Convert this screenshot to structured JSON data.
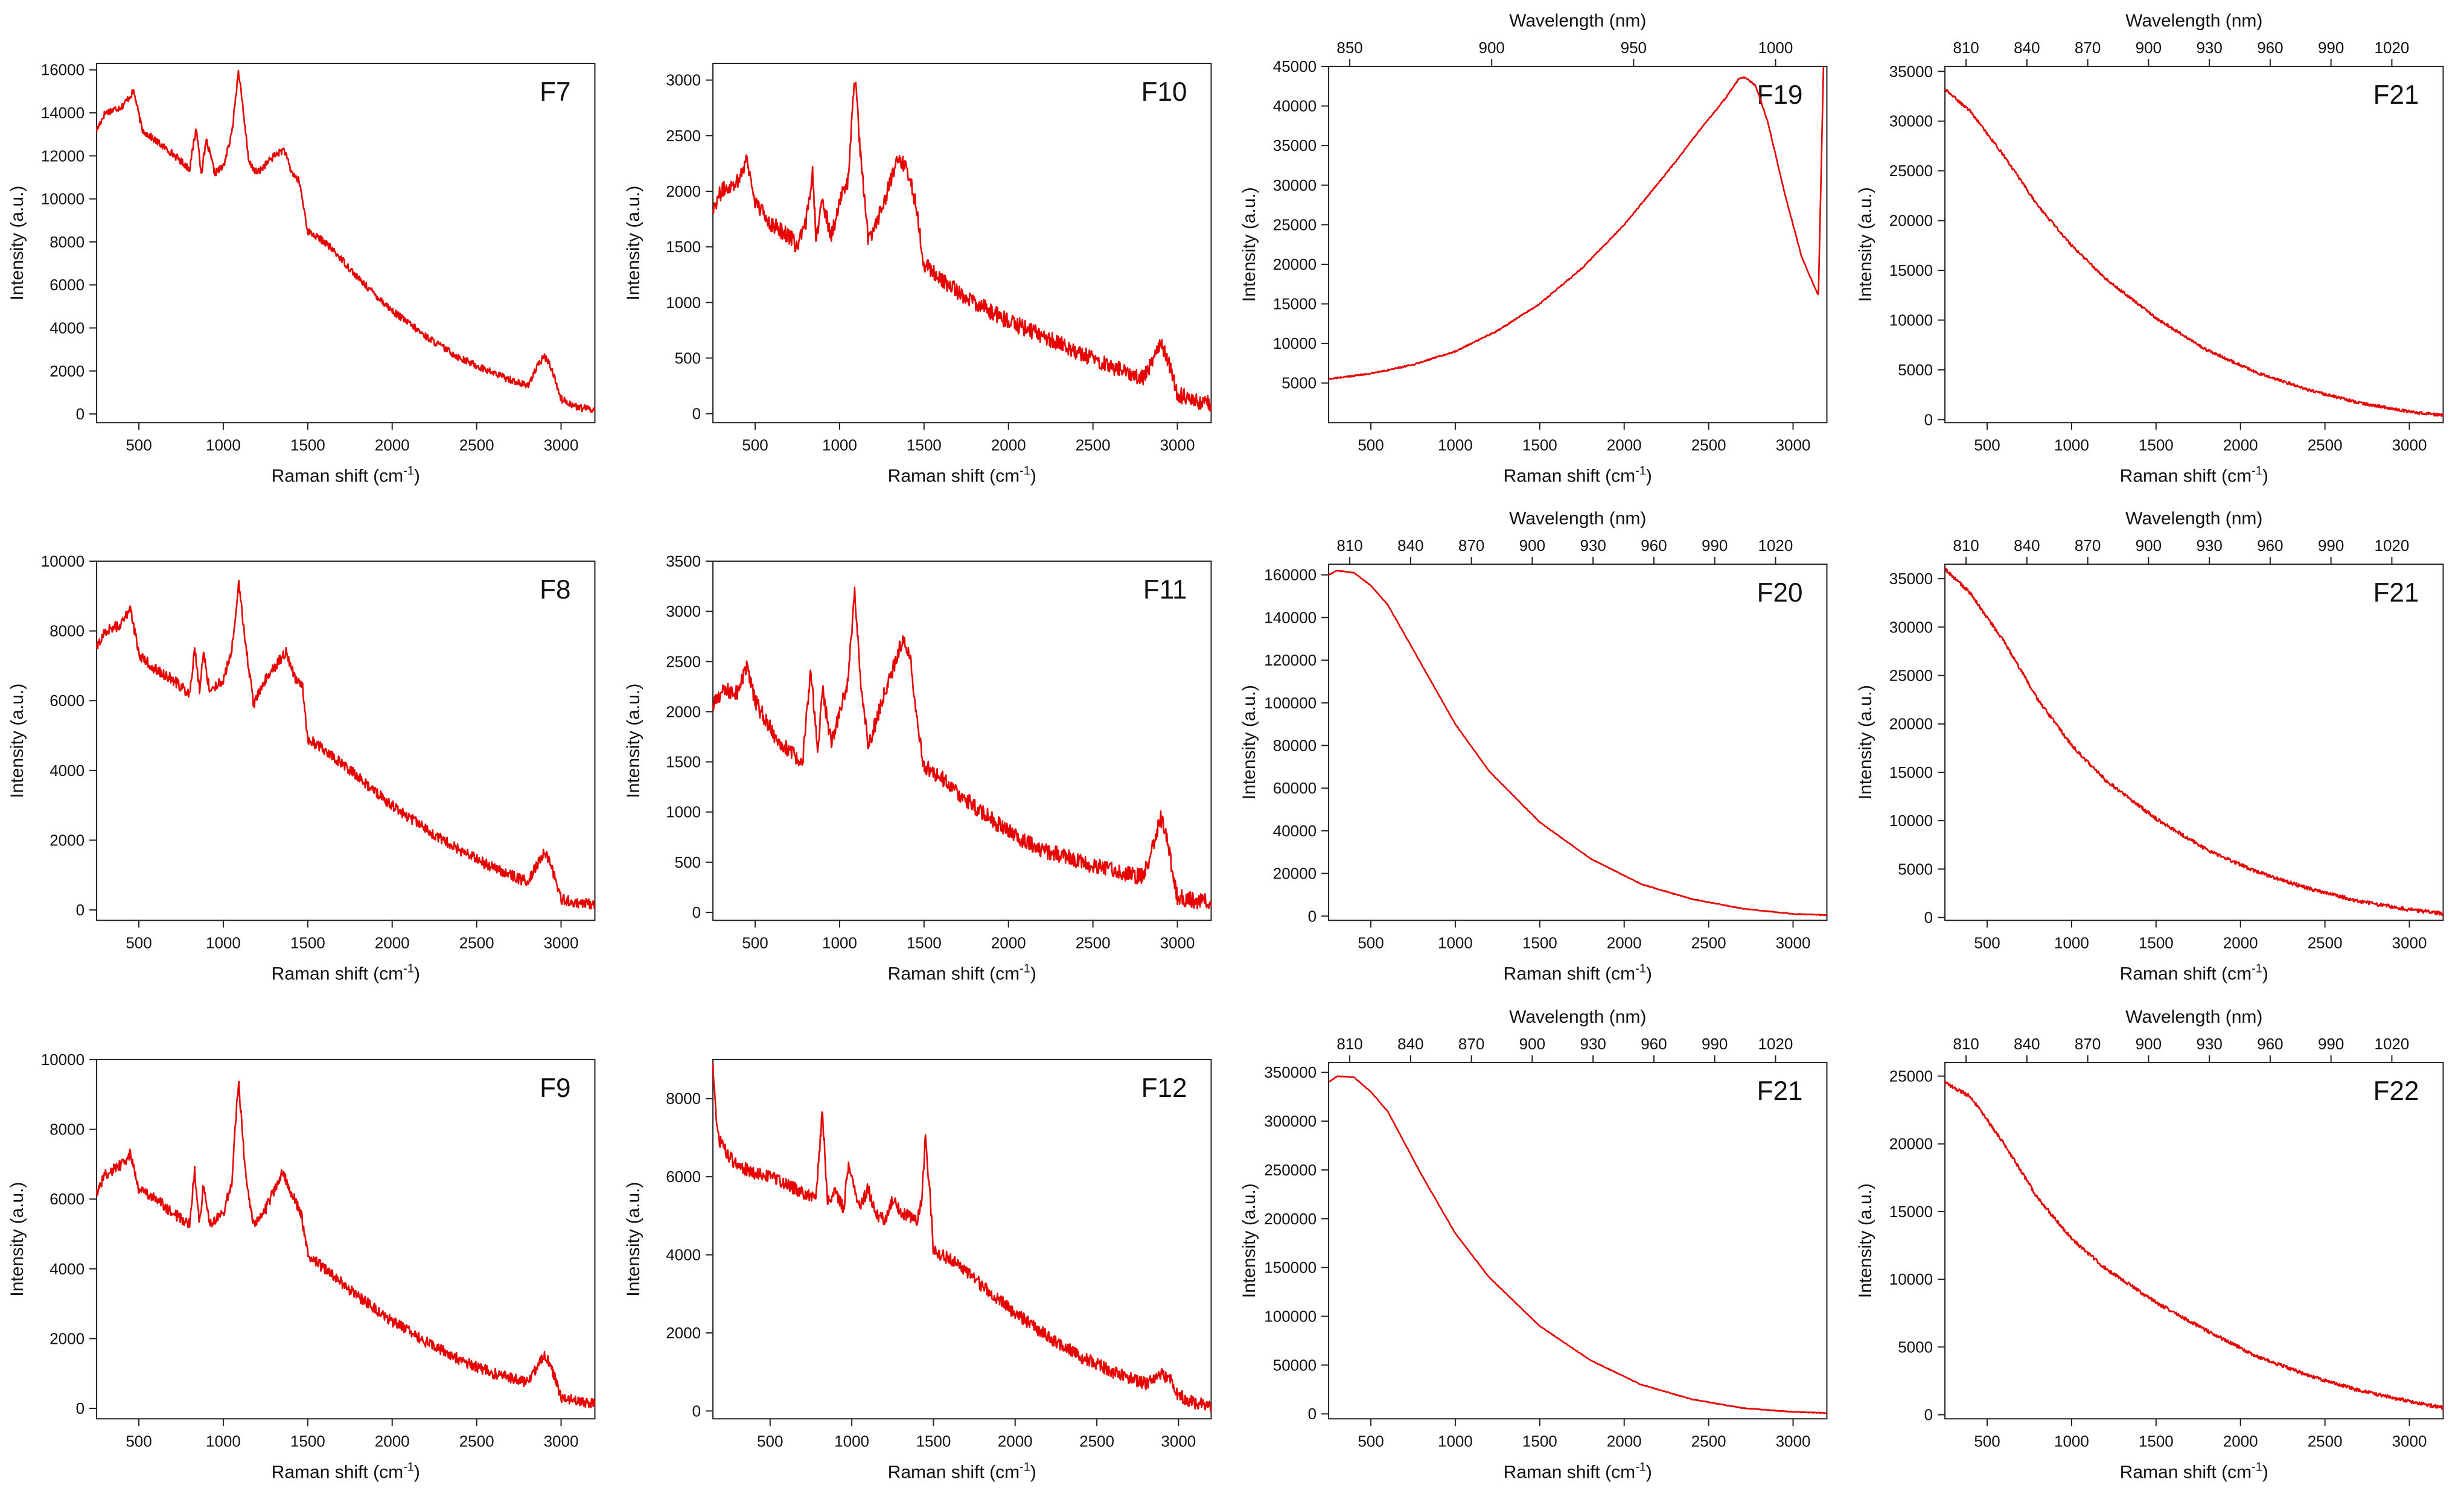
{
  "figure": {
    "accent_color": "#e60000",
    "axis_color": "#222222"
  },
  "chart_data": [
    {
      "id": "F7",
      "type": "line",
      "title": "F7",
      "xlabel": "Raman shift (cm",
      "xlabel_sup": "-1",
      "xlabel_end": ")",
      "ylabel": "Intensity (a.u.)",
      "xlim": [
        250,
        3200
      ],
      "ylim": [
        -400,
        16300
      ],
      "xticks": [
        500,
        1000,
        1500,
        2000,
        2500,
        3000
      ],
      "yticks": [
        0,
        2000,
        4000,
        6000,
        8000,
        10000,
        12000,
        14000,
        16000
      ],
      "top_axis": null,
      "noise": 0.02,
      "x": [
        250,
        300,
        400,
        470,
        520,
        600,
        700,
        800,
        840,
        870,
        900,
        950,
        1000,
        1050,
        1090,
        1120,
        1150,
        1200,
        1300,
        1360,
        1400,
        1450,
        1500,
        1600,
        1700,
        1800,
        2000,
        2200,
        2400,
        2600,
        2800,
        2860,
        2900,
        2940,
        3000,
        3100,
        3200
      ],
      "y": [
        13200,
        14000,
        14300,
        15000,
        13200,
        12700,
        12100,
        11400,
        13300,
        11200,
        12700,
        11200,
        11500,
        13000,
        16000,
        14000,
        11700,
        11200,
        12000,
        12300,
        11300,
        10800,
        8500,
        8000,
        7200,
        6300,
        4800,
        3600,
        2600,
        1900,
        1300,
        2200,
        2700,
        2200,
        700,
        300,
        200
      ]
    },
    {
      "id": "F10",
      "type": "line",
      "title": "F10",
      "xlabel": "Raman shift (cm",
      "xlabel_sup": "-1",
      "xlabel_end": ")",
      "ylabel": "Intensity (a.u.)",
      "xlim": [
        250,
        3200
      ],
      "ylim": [
        -80,
        3150
      ],
      "xticks": [
        500,
        1000,
        1500,
        2000,
        2500,
        3000
      ],
      "yticks": [
        0,
        500,
        1000,
        1500,
        2000,
        2500,
        3000
      ],
      "top_axis": null,
      "noise": 0.045,
      "x": [
        250,
        300,
        400,
        450,
        500,
        600,
        700,
        750,
        800,
        840,
        860,
        900,
        950,
        1000,
        1050,
        1090,
        1130,
        1170,
        1250,
        1350,
        1400,
        1450,
        1500,
        1600,
        1800,
        2000,
        2200,
        2400,
        2600,
        2800,
        2860,
        2900,
        2940,
        3000,
        3100,
        3200
      ],
      "y": [
        1850,
        2000,
        2100,
        2300,
        1900,
        1700,
        1600,
        1500,
        1700,
        2200,
        1600,
        1900,
        1600,
        1900,
        2100,
        3050,
        2200,
        1550,
        1850,
        2300,
        2200,
        1900,
        1350,
        1200,
        1000,
        830,
        700,
        560,
        430,
        320,
        500,
        650,
        500,
        180,
        110,
        90
      ]
    },
    {
      "id": "F19",
      "type": "line",
      "title": "F19",
      "xlabel": "Raman shift (cm",
      "xlabel_sup": "-1",
      "xlabel_end": ")",
      "ylabel": "Intensity (a.u.)",
      "xlim": [
        250,
        3200
      ],
      "ylim": [
        0,
        45000
      ],
      "xticks": [
        500,
        1000,
        1500,
        2000,
        2500,
        3000
      ],
      "yticks": [
        5000,
        10000,
        15000,
        20000,
        25000,
        30000,
        35000,
        40000,
        45000
      ],
      "top_axis": {
        "label": "Wavelength (nm)",
        "ticks": [
          850,
          900,
          950,
          1000
        ]
      },
      "noise": 0.004,
      "x": [
        250,
        500,
        750,
        1000,
        1250,
        1500,
        1750,
        2000,
        2250,
        2450,
        2600,
        2680,
        2720,
        2780,
        2850,
        2950,
        3050,
        3150,
        3180
      ],
      "y": [
        5500,
        6200,
        7300,
        9000,
        11600,
        15000,
        19500,
        25000,
        31500,
        37000,
        41000,
        43500,
        43600,
        42500,
        38000,
        29000,
        21000,
        16000,
        45000
      ]
    },
    {
      "id": "F21a",
      "type": "line",
      "title": "F21",
      "xlabel": "Raman shift (cm",
      "xlabel_sup": "-1",
      "xlabel_end": ")",
      "ylabel": "Intensity (a.u.)",
      "xlim": [
        250,
        3200
      ],
      "ylim": [
        -300,
        35500
      ],
      "xticks": [
        500,
        1000,
        1500,
        2000,
        2500,
        3000
      ],
      "yticks": [
        0,
        5000,
        10000,
        15000,
        20000,
        25000,
        30000,
        35000
      ],
      "top_axis": {
        "label": "Wavelength (nm)",
        "ticks": [
          810,
          840,
          870,
          900,
          930,
          960,
          990,
          1020
        ]
      },
      "noise": 0.008,
      "x": [
        250,
        400,
        600,
        800,
        1000,
        1200,
        1500,
        1800,
        2100,
        2400,
        2700,
        3000,
        3200
      ],
      "y": [
        33200,
        31000,
        26500,
        21500,
        17500,
        14200,
        10200,
        7000,
        4700,
        3000,
        1700,
        800,
        400
      ]
    },
    {
      "id": "F8",
      "type": "line",
      "title": "F8",
      "xlabel": "Raman shift (cm",
      "xlabel_sup": "-1",
      "xlabel_end": ")",
      "ylabel": "Intensity (a.u.)",
      "xlim": [
        250,
        3200
      ],
      "ylim": [
        -300,
        10000
      ],
      "xticks": [
        500,
        1000,
        1500,
        2000,
        2500,
        3000
      ],
      "yticks": [
        0,
        2000,
        4000,
        6000,
        8000,
        10000
      ],
      "top_axis": null,
      "noise": 0.03,
      "x": [
        250,
        300,
        400,
        450,
        500,
        600,
        700,
        800,
        830,
        860,
        880,
        920,
        1000,
        1050,
        1090,
        1130,
        1180,
        1250,
        1370,
        1420,
        1470,
        1500,
        1600,
        1800,
        2000,
        2200,
        2400,
        2600,
        2800,
        2860,
        2900,
        2940,
        3000,
        3100,
        3200
      ],
      "y": [
        7500,
        8000,
        8200,
        8700,
        7300,
        6900,
        6600,
        6200,
        7500,
        6300,
        7400,
        6300,
        6600,
        7400,
        9400,
        7700,
        5900,
        6600,
        7400,
        6700,
        6400,
        4900,
        4600,
        3800,
        3000,
        2300,
        1700,
        1200,
        800,
        1300,
        1700,
        1300,
        300,
        200,
        150
      ]
    },
    {
      "id": "F11",
      "type": "line",
      "title": "F11",
      "xlabel": "Raman shift (cm",
      "xlabel_sup": "-1",
      "xlabel_end": ")",
      "ylabel": "Intensity (a.u.)",
      "xlim": [
        250,
        3200
      ],
      "ylim": [
        -80,
        3500
      ],
      "xticks": [
        500,
        1000,
        1500,
        2000,
        2500,
        3000
      ],
      "yticks": [
        0,
        500,
        1000,
        1500,
        2000,
        2500,
        3000,
        3500
      ],
      "top_axis": null,
      "noise": 0.045,
      "x": [
        250,
        300,
        400,
        450,
        500,
        600,
        700,
        780,
        830,
        870,
        900,
        950,
        1000,
        1050,
        1090,
        1130,
        1170,
        1250,
        1380,
        1420,
        1450,
        1500,
        1600,
        1800,
        2000,
        2200,
        2400,
        2600,
        2800,
        2860,
        2900,
        2940,
        3000,
        3100,
        3200
      ],
      "y": [
        2050,
        2200,
        2200,
        2450,
        2100,
        1800,
        1600,
        1500,
        2400,
        1600,
        2200,
        1700,
        2000,
        2300,
        3200,
        2200,
        1650,
        2100,
        2750,
        2500,
        2000,
        1450,
        1350,
        1050,
        800,
        620,
        520,
        420,
        350,
        700,
        950,
        700,
        150,
        120,
        100
      ]
    },
    {
      "id": "F20",
      "type": "line",
      "title": "F20",
      "xlabel": "Raman shift (cm",
      "xlabel_sup": "-1",
      "xlabel_end": ")",
      "ylabel": "Intensity (a.u.)",
      "xlim": [
        250,
        3200
      ],
      "ylim": [
        -2000,
        165000
      ],
      "xticks": [
        500,
        1000,
        1500,
        2000,
        2500,
        3000
      ],
      "yticks": [
        0,
        20000,
        40000,
        60000,
        80000,
        100000,
        120000,
        140000,
        160000
      ],
      "top_axis": {
        "label": "Wavelength (nm)",
        "ticks": [
          810,
          840,
          870,
          900,
          930,
          960,
          990,
          1020
        ]
      },
      "noise": 0.002,
      "x": [
        250,
        300,
        400,
        500,
        600,
        800,
        1000,
        1200,
        1500,
        1800,
        2100,
        2400,
        2700,
        3000,
        3200
      ],
      "y": [
        160000,
        162000,
        161000,
        155000,
        146000,
        118000,
        90000,
        68000,
        44000,
        27000,
        15000,
        8000,
        3500,
        1000,
        500
      ]
    },
    {
      "id": "F21b",
      "type": "line",
      "title": "F21",
      "xlabel": "Raman shift (cm",
      "xlabel_sup": "-1",
      "xlabel_end": ")",
      "ylabel": "Intensity (a.u.)",
      "xlim": [
        250,
        3200
      ],
      "ylim": [
        -300,
        36500
      ],
      "xticks": [
        500,
        1000,
        1500,
        2000,
        2500,
        3000
      ],
      "yticks": [
        0,
        5000,
        10000,
        15000,
        20000,
        25000,
        30000,
        35000
      ],
      "top_axis": {
        "label": "Wavelength (nm)",
        "ticks": [
          810,
          840,
          870,
          900,
          930,
          960,
          990,
          1020
        ]
      },
      "noise": 0.01,
      "x": [
        250,
        400,
        600,
        800,
        1000,
        1200,
        1500,
        1800,
        2100,
        2400,
        2700,
        3000,
        3200
      ],
      "y": [
        36000,
        33500,
        28500,
        22500,
        17800,
        14200,
        10200,
        7000,
        4700,
        3000,
        1700,
        800,
        400
      ]
    },
    {
      "id": "F9",
      "type": "line",
      "title": "F9",
      "xlabel": "Raman shift (cm",
      "xlabel_sup": "-1",
      "xlabel_end": ")",
      "ylabel": "Intensity (a.u.)",
      "xlim": [
        250,
        3200
      ],
      "ylim": [
        -300,
        10000
      ],
      "xticks": [
        500,
        1000,
        1500,
        2000,
        2500,
        3000
      ],
      "yticks": [
        0,
        2000,
        4000,
        6000,
        8000,
        10000
      ],
      "top_axis": null,
      "noise": 0.03,
      "x": [
        250,
        300,
        400,
        450,
        500,
        600,
        700,
        800,
        830,
        860,
        880,
        920,
        1000,
        1050,
        1090,
        1130,
        1180,
        1250,
        1350,
        1420,
        1460,
        1500,
        1600,
        1800,
        2000,
        2200,
        2400,
        2600,
        2800,
        2860,
        2900,
        2940,
        3000,
        3100,
        3200
      ],
      "y": [
        6200,
        6700,
        7000,
        7300,
        6300,
        6000,
        5600,
        5300,
        6800,
        5300,
        6400,
        5300,
        5600,
        6500,
        9400,
        6800,
        5200,
        5700,
        6800,
        6000,
        5600,
        4400,
        4000,
        3200,
        2500,
        1900,
        1400,
        1000,
        750,
        1200,
        1550,
        1200,
        300,
        200,
        150
      ]
    },
    {
      "id": "F12",
      "type": "line",
      "title": "F12",
      "xlabel": "Raman shift (cm",
      "xlabel_sup": "-1",
      "xlabel_end": ")",
      "ylabel": "Intensity (a.u.)",
      "xlim": [
        150,
        3200
      ],
      "ylim": [
        -200,
        9000
      ],
      "xticks": [
        500,
        1000,
        1500,
        2000,
        2500,
        3000
      ],
      "yticks": [
        0,
        2000,
        4000,
        6000,
        8000
      ],
      "top_axis": null,
      "noise": 0.035,
      "x": [
        150,
        180,
        250,
        300,
        400,
        500,
        600,
        700,
        780,
        820,
        850,
        900,
        950,
        980,
        1050,
        1100,
        1150,
        1200,
        1250,
        1300,
        1400,
        1430,
        1450,
        1480,
        1500,
        1600,
        1800,
        2000,
        2200,
        2400,
        2600,
        2800,
        2860,
        2900,
        2950,
        3000,
        3100,
        3200
      ],
      "y": [
        8800,
        7000,
        6500,
        6300,
        6100,
        6000,
        5800,
        5600,
        5400,
        7700,
        5400,
        5600,
        5200,
        6300,
        5200,
        5700,
        5000,
        4900,
        5400,
        5100,
        4900,
        5500,
        7000,
        5500,
        4100,
        3900,
        3200,
        2500,
        1900,
        1400,
        1000,
        700,
        850,
        950,
        800,
        400,
        200,
        150
      ]
    },
    {
      "id": "F21c",
      "type": "line",
      "title": "F21",
      "xlabel": "Raman shift (cm",
      "xlabel_sup": "-1",
      "xlabel_end": ")",
      "ylabel": "Intensity (a.u.)",
      "xlim": [
        250,
        3200
      ],
      "ylim": [
        -5000,
        360000
      ],
      "xticks": [
        500,
        1000,
        1500,
        2000,
        2500,
        3000
      ],
      "yticks": [
        0,
        50000,
        100000,
        150000,
        200000,
        250000,
        300000,
        350000
      ],
      "top_axis": {
        "label": "Wavelength (nm)",
        "ticks": [
          810,
          840,
          870,
          900,
          930,
          960,
          990,
          1020
        ]
      },
      "noise": 0.002,
      "x": [
        250,
        300,
        400,
        500,
        600,
        800,
        1000,
        1200,
        1500,
        1800,
        2100,
        2400,
        2700,
        3000,
        3200
      ],
      "y": [
        340000,
        346000,
        345000,
        330000,
        310000,
        245000,
        185000,
        140000,
        90000,
        55000,
        30000,
        15000,
        6000,
        2000,
        1000
      ]
    },
    {
      "id": "F22",
      "type": "line",
      "title": "F22",
      "xlabel": "Raman shift (cm",
      "xlabel_sup": "-1",
      "xlabel_end": ")",
      "ylabel": "Intensity (a.u.)",
      "xlim": [
        250,
        3200
      ],
      "ylim": [
        -300,
        26000
      ],
      "xticks": [
        500,
        1000,
        1500,
        2000,
        2500,
        3000
      ],
      "yticks": [
        0,
        5000,
        10000,
        15000,
        20000,
        25000
      ],
      "top_axis": {
        "label": "Wavelength (nm)",
        "ticks": [
          810,
          840,
          870,
          900,
          930,
          960,
          990,
          1020
        ]
      },
      "noise": 0.01,
      "x": [
        250,
        400,
        600,
        800,
        1000,
        1200,
        1500,
        1800,
        2100,
        2400,
        2700,
        3000,
        3200
      ],
      "y": [
        24500,
        23500,
        20000,
        16000,
        13000,
        10800,
        8300,
        6200,
        4300,
        2900,
        1800,
        1000,
        500
      ]
    }
  ]
}
